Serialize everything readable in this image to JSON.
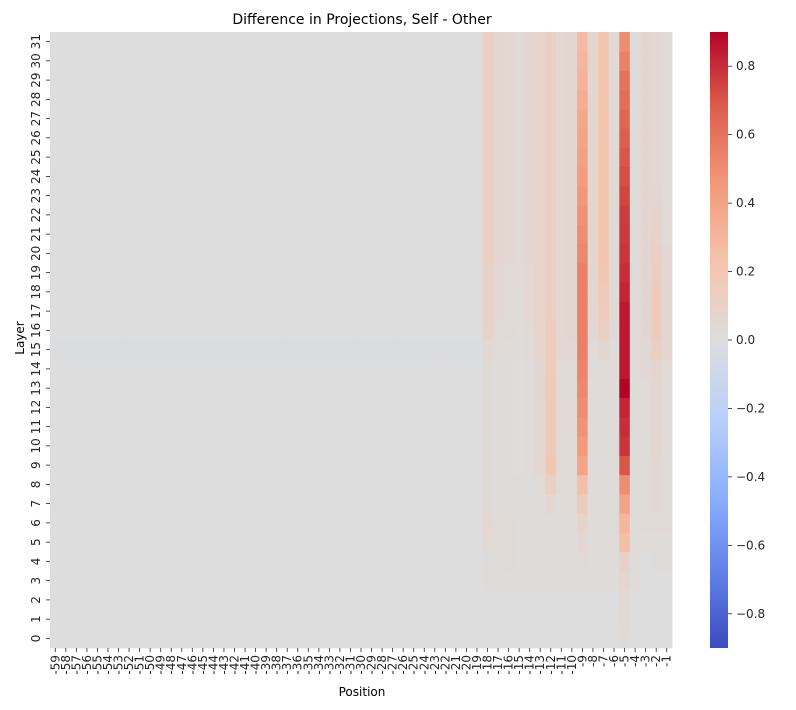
{
  "chart_data": {
    "type": "heatmap",
    "title": "Difference in Projections, Self - Other",
    "xlabel": "Position",
    "ylabel": "Layer",
    "x_categories": [
      "-59",
      "-58",
      "-57",
      "-56",
      "-55",
      "-54",
      "-53",
      "-52",
      "-51",
      "-50",
      "-49",
      "-48",
      "-47",
      "-46",
      "-45",
      "-44",
      "-43",
      "-42",
      "-41",
      "-40",
      "-39",
      "-38",
      "-37",
      "-36",
      "-35",
      "-34",
      "-33",
      "-32",
      "-31",
      "-30",
      "-29",
      "-28",
      "-27",
      "-26",
      "-25",
      "-24",
      "-23",
      "-22",
      "-21",
      "-20",
      "-19",
      "-18",
      "-17",
      "-16",
      "-15",
      "-14",
      "-13",
      "-12",
      "-11",
      "-10",
      "-9",
      "-8",
      "-7",
      "-6",
      "-5",
      "-4",
      "-3",
      "-2",
      "-1"
    ],
    "y_categories": [
      "0",
      "1",
      "2",
      "3",
      "4",
      "5",
      "6",
      "7",
      "8",
      "9",
      "10",
      "11",
      "12",
      "13",
      "14",
      "15",
      "16",
      "17",
      "18",
      "19",
      "20",
      "21",
      "22",
      "23",
      "24",
      "25",
      "26",
      "27",
      "28",
      "29",
      "30",
      "31"
    ],
    "colorbar": {
      "colormap": "coolwarm",
      "range": [
        -0.9,
        0.9
      ],
      "ticks": [
        "−0.8",
        "−0.6",
        "−0.4",
        "−0.2",
        "0.0",
        "0.2",
        "0.4",
        "0.6",
        "0.8"
      ],
      "tick_values": [
        -0.8,
        -0.6,
        -0.4,
        -0.2,
        0.0,
        0.2,
        0.4,
        0.6,
        0.8
      ]
    },
    "column_profiles": {
      "-18": [
        0,
        0,
        0,
        0.01,
        0.02,
        0.04,
        0.05,
        0.03,
        0.03,
        0.03,
        0.03,
        0.03,
        0.03,
        0.03,
        0.03,
        0.05,
        0.08,
        0.1,
        0.1,
        0.1,
        0.12,
        0.12,
        0.12,
        0.12,
        0.12,
        0.12,
        0.12,
        0.12,
        0.12,
        0.12,
        0.12,
        0.12
      ],
      "-17": [
        0,
        0,
        0,
        0.02,
        0.02,
        0.03,
        0.03,
        0.02,
        0.02,
        0.02,
        0.02,
        0.02,
        0.02,
        0.02,
        0.02,
        0.03,
        0.04,
        0.05,
        0.05,
        0.05,
        0.06,
        0.06,
        0.06,
        0.06,
        0.06,
        0.06,
        0.06,
        0.06,
        0.06,
        0.06,
        0.06,
        0.06
      ],
      "-16": [
        0,
        0,
        0,
        0.02,
        0.03,
        0.03,
        0.03,
        0.02,
        0.02,
        0.01,
        0.01,
        0.01,
        0.01,
        0.01,
        0.01,
        0.02,
        0.03,
        0.04,
        0.04,
        0.04,
        0.05,
        0.05,
        0.05,
        0.05,
        0.05,
        0.05,
        0.05,
        0.05,
        0.05,
        0.05,
        0.05,
        0.05
      ],
      "-15": [
        0,
        0,
        0,
        0.02,
        0.02,
        0.02,
        0.02,
        0.02,
        0.01,
        0,
        0,
        0,
        0,
        0,
        0,
        0.01,
        0.02,
        0.03,
        0.03,
        0.04,
        0.04,
        0.04,
        0.04,
        0.04,
        0.04,
        0.04,
        0.04,
        0.04,
        0.04,
        0.04,
        0.04,
        0.04
      ],
      "-14": [
        0,
        0,
        0,
        0.01,
        0.01,
        0.01,
        0.01,
        0.01,
        0.01,
        0.02,
        0.02,
        0.02,
        0.02,
        0.02,
        0.02,
        0.03,
        0.04,
        0.05,
        0.05,
        0.05,
        0.06,
        0.06,
        0.06,
        0.06,
        0.06,
        0.06,
        0.06,
        0.06,
        0.06,
        0.06,
        0.06,
        0.06
      ],
      "-13": [
        0,
        0,
        0,
        0.01,
        0.01,
        0.01,
        0.01,
        0.02,
        0.03,
        0.05,
        0.05,
        0.05,
        0.05,
        0.06,
        0.06,
        0.08,
        0.09,
        0.09,
        0.09,
        0.09,
        0.09,
        0.09,
        0.09,
        0.09,
        0.09,
        0.09,
        0.09,
        0.09,
        0.09,
        0.09,
        0.09,
        0.09
      ],
      "-12": [
        0,
        0,
        0,
        0.01,
        0.01,
        0.01,
        0.02,
        0.05,
        0.12,
        0.2,
        0.18,
        0.18,
        0.18,
        0.17,
        0.16,
        0.16,
        0.15,
        0.13,
        0.12,
        0.12,
        0.12,
        0.12,
        0.12,
        0.12,
        0.12,
        0.12,
        0.12,
        0.12,
        0.12,
        0.12,
        0.12,
        0.12
      ],
      "-11": [
        0,
        0,
        0,
        0.01,
        0.01,
        0.01,
        0.01,
        0.02,
        0.03,
        0.04,
        0.04,
        0.04,
        0.04,
        0.04,
        0.04,
        0.05,
        0.05,
        0.05,
        0.05,
        0.05,
        0.05,
        0.05,
        0.05,
        0.05,
        0.05,
        0.05,
        0.05,
        0.05,
        0.05,
        0.05,
        0.05,
        0.05
      ],
      "-10": [
        0,
        0,
        0,
        0.02,
        0.02,
        0.02,
        0.02,
        0.03,
        0.03,
        0.04,
        0.04,
        0.04,
        0.04,
        0.04,
        0.04,
        0.05,
        0.06,
        0.06,
        0.06,
        0.06,
        0.06,
        0.06,
        0.06,
        0.06,
        0.06,
        0.06,
        0.06,
        0.06,
        0.06,
        0.06,
        0.06,
        0.06
      ],
      "-9": [
        0,
        0,
        0,
        0.02,
        0.03,
        0.05,
        0.08,
        0.15,
        0.25,
        0.4,
        0.45,
        0.48,
        0.5,
        0.52,
        0.53,
        0.55,
        0.55,
        0.55,
        0.55,
        0.55,
        0.52,
        0.5,
        0.48,
        0.46,
        0.44,
        0.42,
        0.4,
        0.38,
        0.35,
        0.32,
        0.3,
        0.28
      ],
      "-8": [
        0,
        0,
        0,
        0.02,
        0.02,
        0.02,
        0.02,
        0.02,
        0.02,
        0.02,
        0.02,
        0.02,
        0.02,
        0.02,
        0.02,
        0.03,
        0.05,
        0.06,
        0.06,
        0.06,
        0.06,
        0.06,
        0.06,
        0.06,
        0.06,
        0.06,
        0.06,
        0.06,
        0.06,
        0.06,
        0.06,
        0.06
      ],
      "-7": [
        0,
        0,
        0,
        0.02,
        0.02,
        0.02,
        0.02,
        0.02,
        0.02,
        0.02,
        0.02,
        0.02,
        0.02,
        0.03,
        0.03,
        0.06,
        0.12,
        0.16,
        0.18,
        0.2,
        0.22,
        0.22,
        0.22,
        0.22,
        0.22,
        0.22,
        0.22,
        0.22,
        0.22,
        0.22,
        0.22,
        0.22
      ],
      "-6": [
        0,
        0,
        0,
        0.02,
        0.02,
        0.02,
        0.02,
        0.02,
        0.02,
        0.02,
        0.02,
        0.02,
        0.02,
        0.02,
        0.02,
        0.02,
        0.03,
        0.04,
        0.04,
        0.04,
        0.04,
        0.04,
        0.04,
        0.04,
        0.04,
        0.04,
        0.04,
        0.04,
        0.04,
        0.04,
        0.04,
        0.04
      ],
      "-5": [
        0.02,
        0.03,
        0.04,
        0.06,
        0.1,
        0.25,
        0.3,
        0.4,
        0.5,
        0.7,
        0.78,
        0.8,
        0.82,
        0.9,
        0.85,
        0.85,
        0.85,
        0.85,
        0.82,
        0.8,
        0.78,
        0.77,
        0.76,
        0.74,
        0.72,
        0.7,
        0.68,
        0.65,
        0.62,
        0.6,
        0.55,
        0.5
      ],
      "-4": [
        0,
        0,
        0,
        0.02,
        0.02,
        0.02,
        0.02,
        0.02,
        0.02,
        0.02,
        0.02,
        0.02,
        0.02,
        0.02,
        0.02,
        0.02,
        0.02,
        0.02,
        0.02,
        0.02,
        0.02,
        0.02,
        0.02,
        0.02,
        0.02,
        0.02,
        0.02,
        0.02,
        0.02,
        0.02,
        0.02,
        0.02
      ],
      "-3": [
        0,
        0,
        0,
        0,
        0,
        0.02,
        0.03,
        0.03,
        0.03,
        0.03,
        0.03,
        0.04,
        0.04,
        0.04,
        0.05,
        0.05,
        0.06,
        0.06,
        0.06,
        0.06,
        0.06,
        0.06,
        0.06,
        0.06,
        0.06,
        0.06,
        0.06,
        0.06,
        0.06,
        0.06,
        0.06,
        0.06
      ],
      "-2": [
        0,
        0,
        0,
        0,
        0.01,
        0.02,
        0.04,
        0.05,
        0.05,
        0.05,
        0.06,
        0.06,
        0.06,
        0.06,
        0.07,
        0.12,
        0.15,
        0.16,
        0.16,
        0.14,
        0.12,
        0.1,
        0.08,
        0.06,
        0.05,
        0.05,
        0.05,
        0.05,
        0.05,
        0.05,
        0.05,
        0.05
      ],
      "-1": [
        0,
        0,
        0,
        0,
        0.01,
        0.02,
        0.03,
        0.03,
        0.03,
        0.03,
        0.03,
        0.03,
        0.03,
        0.03,
        0.04,
        0.06,
        0.06,
        0.06,
        0.06,
        0.05,
        0.05,
        0.04,
        0.04,
        0.04,
        0.04,
        0.04,
        0.04,
        0.04,
        0.04,
        0.04,
        0.04,
        0.04
      ]
    },
    "background_value": 0.0,
    "notes_layer15_row": -0.01
  }
}
